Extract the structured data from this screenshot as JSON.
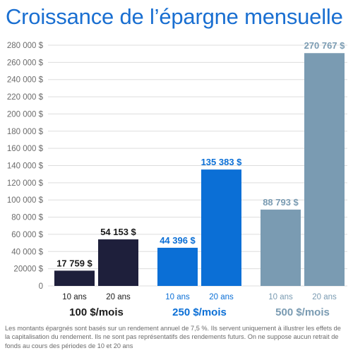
{
  "chart_data": {
    "type": "bar",
    "title": "Croissance de l’épargne mensuelle",
    "xlabel": "",
    "ylabel": "",
    "ylim": [
      0,
      280000
    ],
    "ytick_step": 20000,
    "yticks": [
      "0",
      "20000 $",
      "40 000 $",
      "60 000 $",
      "80 000 $",
      "100 000 $",
      "120 000 $",
      "140 000 $",
      "160 000 $",
      "180 000 $",
      "200 000 $",
      "220 000 $",
      "240 000 $",
      "260 000 $",
      "280 000 $"
    ],
    "grid": true,
    "legend": "none",
    "groups": [
      {
        "name": "100 $/mois",
        "color": "#1e1f3b",
        "bars": [
          {
            "label": "10 ans",
            "value": 17759,
            "value_label": "17 759 $"
          },
          {
            "label": "20 ans",
            "value": 54153,
            "value_label": "54 153 $"
          }
        ]
      },
      {
        "name": "250 $/mois",
        "color": "#0b6fd6",
        "bars": [
          {
            "label": "10 ans",
            "value": 44396,
            "value_label": "44 396 $"
          },
          {
            "label": "20 ans",
            "value": 135383,
            "value_label": "135 383 $"
          }
        ]
      },
      {
        "name": "500 $/mois",
        "color": "#7a9bb2",
        "bars": [
          {
            "label": "10 ans",
            "value": 88793,
            "value_label": "88 793 $"
          },
          {
            "label": "20 ans",
            "value": 270767,
            "value_label": "270 767 $"
          }
        ]
      }
    ]
  },
  "footnote": "Les montants épargnés sont basés sur un rendement annuel de 7,5 %. Ils servent uniquement à illustrer les effets de la capitalisation du rendement. Ils ne sont pas représentatifs des rendements futurs. On ne suppose aucun retrait de fonds au cours des périodes de 10 et 20 ans",
  "colors": {
    "title": "#1a6fd1",
    "grid": "#dddddd",
    "axis_text": "#6b6b6b",
    "bar_label_light_text": "#1a1a1a"
  }
}
